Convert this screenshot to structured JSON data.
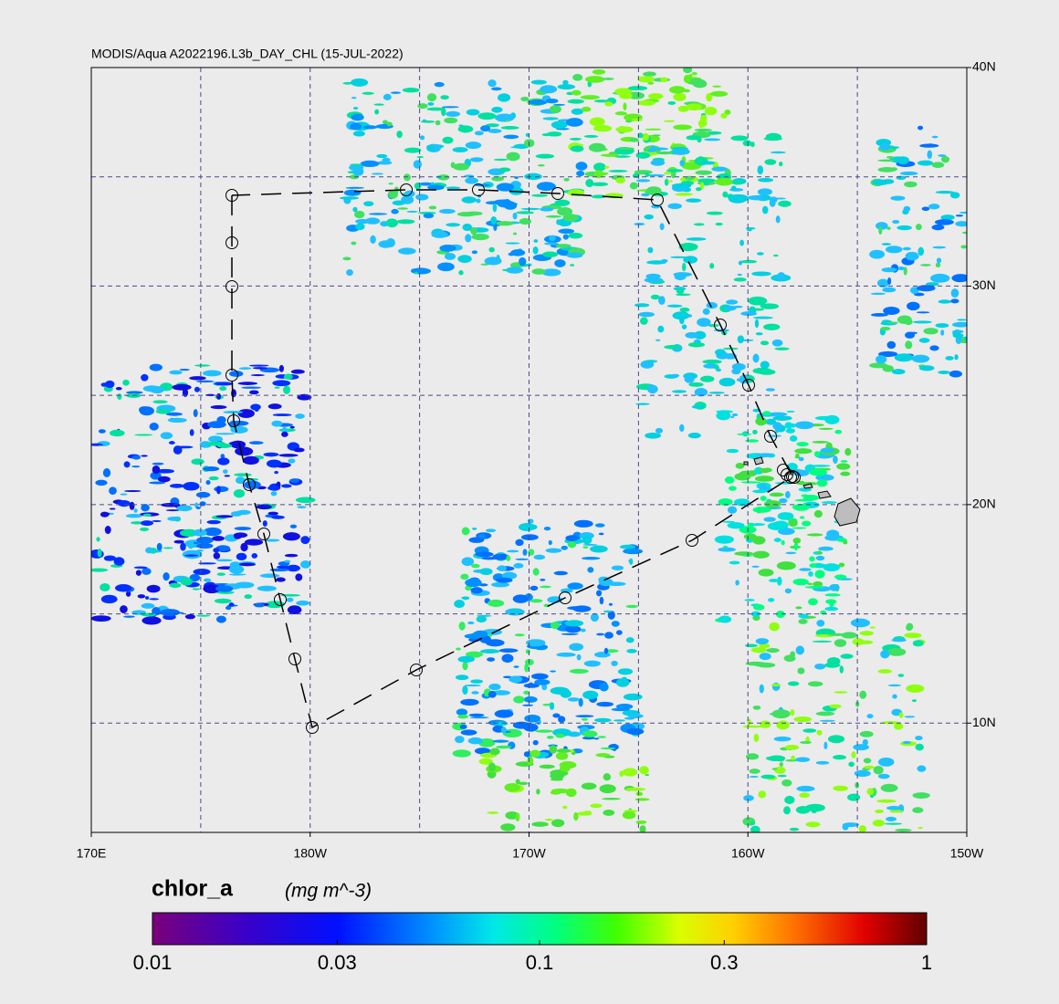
{
  "chart_data": {
    "type": "map",
    "title": "MODIS/Aqua A2022196.L3b_DAY_CHL (15-JUL-2022)",
    "xlim": [
      170,
      210
    ],
    "ylim": [
      5,
      40
    ],
    "xticks": [
      {
        "value": 170,
        "label": "170E"
      },
      {
        "value": 180,
        "label": "180W"
      },
      {
        "value": 190,
        "label": "170W"
      },
      {
        "value": 200,
        "label": "160W"
      },
      {
        "value": 210,
        "label": "150W"
      }
    ],
    "yticks": [
      {
        "value": 10,
        "label": "10N"
      },
      {
        "value": 20,
        "label": "20N"
      },
      {
        "value": 30,
        "label": "30N"
      },
      {
        "value": 40,
        "label": "40N"
      }
    ],
    "xgrid": [
      175,
      180,
      185,
      190,
      195,
      200,
      205
    ],
    "ygrid": [
      10,
      15,
      20,
      25,
      30,
      35
    ],
    "colorbar": {
      "label": "chlor_a",
      "units": "(mg m^-3)",
      "log": true,
      "lim": [
        0.01,
        1
      ],
      "ticks": [
        0.01,
        0.03,
        0.1,
        0.3,
        1
      ]
    }
  }
}
